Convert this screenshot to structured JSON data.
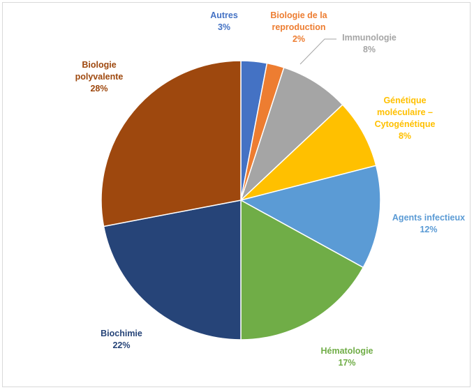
{
  "chart_data": {
    "type": "pie",
    "title": "",
    "legend": "none",
    "slices": [
      {
        "key": "autres",
        "label_lines": [
          "Autres"
        ],
        "value_label": "3%",
        "value": 3,
        "color": "#4472C4"
      },
      {
        "key": "biologie-reproduction",
        "label_lines": [
          "Biologie de la",
          "reproduction"
        ],
        "value_label": "2%",
        "value": 2,
        "color": "#ED7D31"
      },
      {
        "key": "immunologie",
        "label_lines": [
          "Immunologie"
        ],
        "value_label": "8%",
        "value": 8,
        "color": "#A5A5A5"
      },
      {
        "key": "genetique",
        "label_lines": [
          "Génétique",
          "moléculaire –",
          "Cytogénétique"
        ],
        "value_label": "8%",
        "value": 8,
        "color": "#FFC000"
      },
      {
        "key": "agents-infectieux",
        "label_lines": [
          "Agents infectieux"
        ],
        "value_label": "12%",
        "value": 12,
        "color": "#5B9BD5"
      },
      {
        "key": "hematologie",
        "label_lines": [
          "Hématologie"
        ],
        "value_label": "17%",
        "value": 17,
        "color": "#70AD47"
      },
      {
        "key": "biochimie",
        "label_lines": [
          "Biochimie"
        ],
        "value_label": "22%",
        "value": 22,
        "color": "#264478"
      },
      {
        "key": "biologie-polyvalente",
        "label_lines": [
          "Biologie",
          "polyvalente"
        ],
        "value_label": "28%",
        "value": 28,
        "color": "#9E480E"
      }
    ]
  }
}
